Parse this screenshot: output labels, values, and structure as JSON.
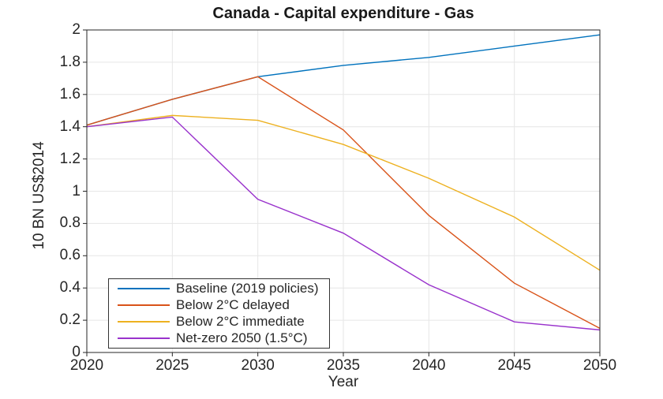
{
  "chart_data": {
    "type": "line",
    "title": "Canada - Capital expenditure - Gas",
    "xlabel": "Year",
    "ylabel": "10 BN US$2014",
    "x": [
      2020,
      2025,
      2030,
      2035,
      2040,
      2045,
      2050
    ],
    "xlim": [
      2020,
      2050
    ],
    "ylim": [
      0,
      2
    ],
    "x_tick_labels": [
      "2020",
      "2025",
      "2030",
      "2035",
      "2040",
      "2045",
      "2050"
    ],
    "y_ticks": [
      0,
      0.2,
      0.4,
      0.6,
      0.8,
      1,
      1.2,
      1.4,
      1.6,
      1.8,
      2
    ],
    "y_tick_labels": [
      "0",
      "0.2",
      "0.4",
      "0.6",
      "0.8",
      "1",
      "1.2",
      "1.4",
      "1.6",
      "1.8",
      "2"
    ],
    "grid": true,
    "legend_position": "bottom-left-inside",
    "series": [
      {
        "name": "Baseline (2019 policies)",
        "color": "#0072BD",
        "values": [
          1.41,
          1.57,
          1.71,
          1.78,
          1.83,
          1.9,
          1.97
        ]
      },
      {
        "name": "Below 2°C delayed",
        "color": "#D95319",
        "values": [
          1.41,
          1.57,
          1.71,
          1.38,
          0.85,
          0.43,
          0.15
        ]
      },
      {
        "name": "Below 2°C immediate",
        "color": "#EDB120",
        "values": [
          1.4,
          1.47,
          1.44,
          1.29,
          1.08,
          0.84,
          0.51
        ]
      },
      {
        "name": "Net-zero 2050 (1.5°C)",
        "color": "#9932CC",
        "values": [
          1.4,
          1.46,
          0.95,
          0.74,
          0.42,
          0.19,
          0.14
        ]
      }
    ],
    "colors": {
      "grid": "#E6E6E6",
      "axis": "#262626",
      "text": "#262626"
    }
  }
}
